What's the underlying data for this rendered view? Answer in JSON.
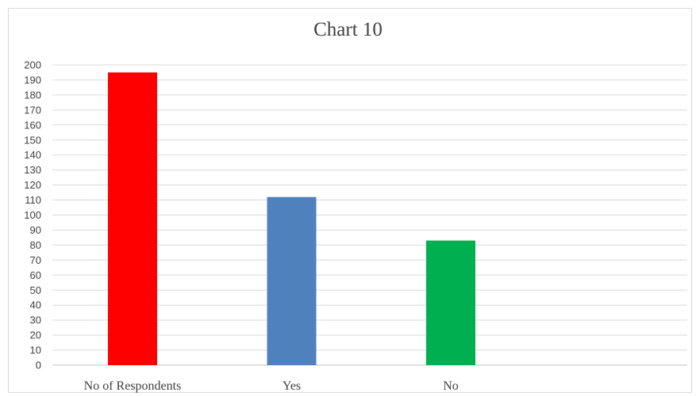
{
  "chart_data": {
    "type": "bar",
    "title": "Chart 10",
    "categories": [
      "No of Respondents",
      "Yes",
      "No"
    ],
    "values": [
      195,
      112,
      83
    ],
    "bar_colors": [
      "#ff0000",
      "#4f81bd",
      "#00b050"
    ],
    "ylim": [
      0,
      200
    ],
    "ytick_step": 10,
    "grid": true,
    "legend": "none"
  }
}
